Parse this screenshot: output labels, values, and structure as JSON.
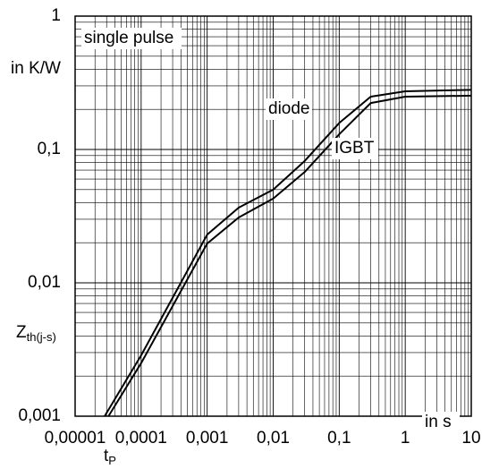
{
  "chart_data": {
    "type": "line",
    "log_x": true,
    "log_y": true,
    "grid": true,
    "y_unit": "in K/W",
    "y_label_symbol": "Z",
    "y_label_subscript": "th(j-s)",
    "x_unit": "in s",
    "x_label_symbol": "t",
    "x_label_subscript": "P",
    "annotation": "single pulse",
    "xlim": [
      1e-05,
      10
    ],
    "xticks": [
      {
        "value": 1e-05,
        "label": "0,00001"
      },
      {
        "value": 0.0001,
        "label": "0,0001"
      },
      {
        "value": 0.001,
        "label": "0,001"
      },
      {
        "value": 0.01,
        "label": "0,01"
      },
      {
        "value": 0.1,
        "label": "0,1"
      },
      1,
      10
    ],
    "ylim": [
      0.001,
      1
    ],
    "yticks": [
      {
        "value": 0.001,
        "label": "0,001"
      },
      {
        "value": 0.01,
        "label": "0,01"
      },
      {
        "value": 0.1,
        "label": "0,1"
      },
      1
    ],
    "series": [
      {
        "name": "diode",
        "color": "#000000",
        "x": [
          2.8e-05,
          0.0001,
          0.001,
          0.003,
          0.01,
          0.03,
          0.1,
          0.3,
          1,
          10
        ],
        "values": [
          0.001,
          0.00286,
          0.023,
          0.0366,
          0.05,
          0.082,
          0.158,
          0.249,
          0.273,
          0.28
        ]
      },
      {
        "name": "IGBT",
        "color": "#000000",
        "x": [
          3.2e-05,
          0.0001,
          0.001,
          0.003,
          0.01,
          0.03,
          0.1,
          0.3,
          1,
          10
        ],
        "values": [
          0.001,
          0.0025,
          0.0197,
          0.0309,
          0.0428,
          0.0678,
          0.13,
          0.223,
          0.249,
          0.253
        ]
      }
    ]
  }
}
